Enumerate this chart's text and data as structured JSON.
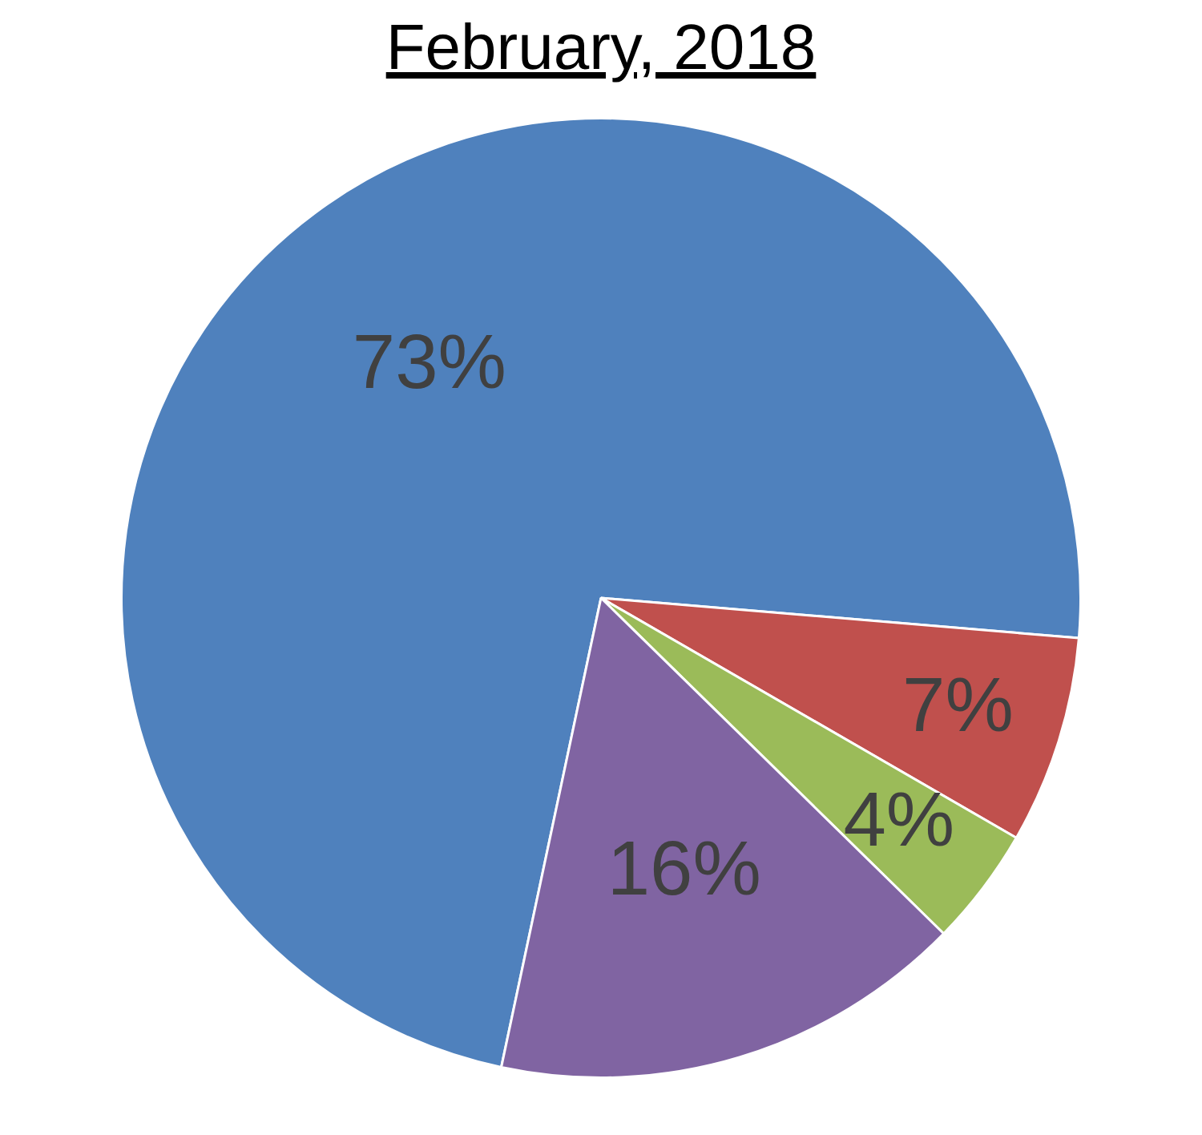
{
  "chart_data": {
    "type": "pie",
    "title": "February, 2018",
    "categories": [
      null,
      null,
      null,
      null
    ],
    "values": [
      73,
      7,
      4,
      16
    ],
    "colors": [
      "#4f81bd",
      "#c0504d",
      "#9bbb59",
      "#8064a2"
    ],
    "value_labels": [
      "73%",
      "7%",
      "4%",
      "16%"
    ],
    "legend": false
  }
}
